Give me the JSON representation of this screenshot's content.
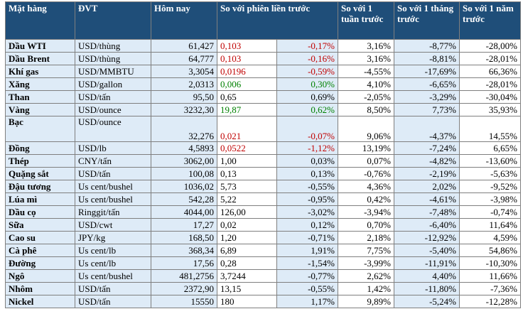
{
  "headers": {
    "commodity": "Mặt hàng",
    "unit": "ĐVT",
    "today": "Hôm nay",
    "vs_prev": "So với phiên liền trước",
    "vs_week": "So với 1 tuần trước",
    "vs_month": "So với 1 tháng trước",
    "vs_year": "So với 1 năm trước"
  },
  "colors": {
    "header_bg": "#1f4e79",
    "band_bg": "#deebf7",
    "up": "#008000",
    "down": "#c00000"
  },
  "rows": [
    {
      "name": "Dầu WTI",
      "unit": "USD/thùng",
      "today": "61,427",
      "chg": "0,103",
      "chg_pct": "-0,17%",
      "week": "3,16%",
      "month": "-8,77%",
      "year": "-28,00%",
      "color": "red"
    },
    {
      "name": "Dầu Brent",
      "unit": "USD/thùng",
      "today": "64,777",
      "chg": "0,103",
      "chg_pct": "-0,16%",
      "week": "3,16%",
      "month": "-8,81%",
      "year": "-28,01%",
      "color": "red"
    },
    {
      "name": "Khí gas",
      "unit": "USD/MMBTU",
      "today": "3,3054",
      "chg": "0,0196",
      "chg_pct": "-0,59%",
      "week": "-4,55%",
      "month": "-17,69%",
      "year": "66,36%",
      "color": "red"
    },
    {
      "name": "Xăng",
      "unit": "USD/gallon",
      "today": "2,0313",
      "chg": "0,006",
      "chg_pct": "0,30%",
      "week": "4,10%",
      "month": "-6,65%",
      "year": "-28,01%",
      "color": "green"
    },
    {
      "name": "Than",
      "unit": "USD/tấn",
      "today": "95,50",
      "chg": "0,65",
      "chg_pct": "0,69%",
      "week": "-2,05%",
      "month": "-3,29%",
      "year": "-30,04%",
      "color": ""
    },
    {
      "name": "Vàng",
      "unit": "USD/ounce",
      "today": "3232,30",
      "chg": "19,87",
      "chg_pct": "0,62%",
      "week": "8,50%",
      "month": "7,73%",
      "year": "35,93%",
      "color": "green"
    },
    {
      "name": "Bạc",
      "unit": "USD/ounce",
      "today": "32,276",
      "chg": "0,021",
      "chg_pct": "-0,07%",
      "week": "9,06%",
      "month": "-4,37%",
      "year": "14,55%",
      "color": "red",
      "tall": true
    },
    {
      "name": "Đồng",
      "unit": "USD/lb",
      "today": "4,5893",
      "chg": "0,0522",
      "chg_pct": "-1,12%",
      "week": "13,19%",
      "month": "-7,24%",
      "year": "6,65%",
      "color": "red",
      "wavy": true
    },
    {
      "name": "Thép",
      "unit": "CNY/tấn",
      "today": "3062,00",
      "chg": "1,00",
      "chg_pct": "0,03%",
      "week": "0,07%",
      "month": "-4,82%",
      "year": "-13,60%",
      "color": ""
    },
    {
      "name": "Quặng sắt",
      "unit": "USD/tấn",
      "today": "100,08",
      "chg": "0,13",
      "chg_pct": "0,13%",
      "week": "-0,76%",
      "month": "-2,19%",
      "year": "-5,63%",
      "color": ""
    },
    {
      "name": "Đậu tương",
      "unit": "Us cent/bushel",
      "today": "1036,02",
      "chg": "5,73",
      "chg_pct": "-0,55%",
      "week": "4,36%",
      "month": "2,02%",
      "year": "-9,52%",
      "color": ""
    },
    {
      "name": "Lúa mì",
      "unit": "Us cent/bushel",
      "today": "542,28",
      "chg": "5,22",
      "chg_pct": "-0,95%",
      "week": "0,42%",
      "month": "-4,61%",
      "year": "-3,98%",
      "color": ""
    },
    {
      "name": "Dầu cọ",
      "unit": "Ringgit/tấn",
      "today": "4044,00",
      "chg": "126,00",
      "chg_pct": "-3,02%",
      "week": "-3,94%",
      "month": "-7,48%",
      "year": "-0,74%",
      "color": ""
    },
    {
      "name": "Sữa",
      "unit": "USD/cwt",
      "today": "17,27",
      "chg": "0,02",
      "chg_pct": "0,12%",
      "week": "0,70%",
      "month": "-6,40%",
      "year": "11,64%",
      "color": "",
      "wavy": true
    },
    {
      "name": "Cao su",
      "unit": "JPY/kg",
      "today": "168,50",
      "chg": "1,20",
      "chg_pct": "-0,71%",
      "week": "2,18%",
      "month": "-12,92%",
      "year": "4,59%",
      "color": ""
    },
    {
      "name": "Cà phê",
      "unit": "Us cent/lb",
      "today": "368,34",
      "chg": "6,89",
      "chg_pct": "1,91%",
      "week": "7,75%",
      "month": "-5,40%",
      "year": "54,86%",
      "color": "",
      "wavy": true
    },
    {
      "name": "Đường",
      "unit": "Us cent/lb",
      "today": "17,56",
      "chg": "0,28",
      "chg_pct": "-1,54%",
      "week": "-3,99%",
      "month": "-11,91%",
      "year": "-10,30%",
      "color": "",
      "wavy": true
    },
    {
      "name": "Ngô",
      "unit": "Us cent/bushel",
      "today": "481,2756",
      "chg": "3,7244",
      "chg_pct": "-0,77%",
      "week": "2,62%",
      "month": "4,40%",
      "year": "11,66%",
      "color": ""
    },
    {
      "name": "Nhôm",
      "unit": "USD/tấn",
      "today": "2372,90",
      "chg": "13,15",
      "chg_pct": "-0,55%",
      "week": "1,42%",
      "month": "-11,80%",
      "year": "-7,36%",
      "color": ""
    },
    {
      "name": "Nickel",
      "unit": "USD/tấn",
      "today": "15550",
      "chg": "180",
      "chg_pct": "1,17%",
      "week": "9,89%",
      "month": "-5,24%",
      "year": "-12,28%",
      "color": ""
    }
  ]
}
